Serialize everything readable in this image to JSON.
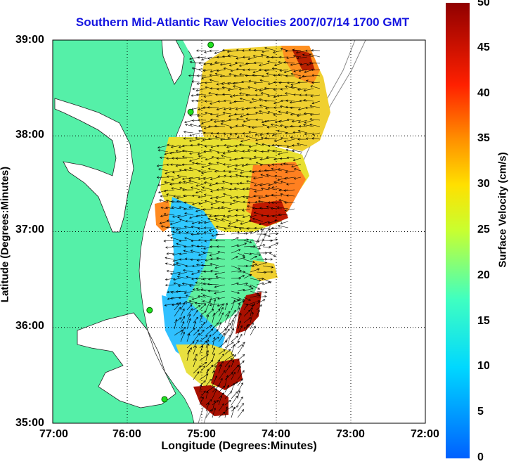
{
  "title": "Southern Mid-Atlantic Raw Velocities 2007/07/14 1700 GMT",
  "xlabel": "Longitude (Degrees:Minutes)",
  "ylabel": "Latitude (Degrees:Minutes)",
  "colorbar": {
    "label": "Surface Velocity (cm/s)",
    "min": 0,
    "max": 50,
    "ticks": [
      "0",
      "5",
      "10",
      "15",
      "20",
      "25",
      "30",
      "35",
      "40",
      "45",
      "50"
    ]
  },
  "x_ticks": [
    "77:00",
    "76:00",
    "75:00",
    "74:00",
    "73:00",
    "72:00"
  ],
  "y_ticks": [
    "39:00",
    "38:00",
    "37:00",
    "36:00",
    "35:00"
  ],
  "colors": {
    "land": "#55f0a8",
    "water": "#ffffff",
    "title": "#1414e0",
    "grid": "#000000"
  },
  "map_data": {
    "lon_range": [
      -77,
      -72
    ],
    "lat_range": [
      35,
      39
    ],
    "stations": [
      {
        "lon": -74.88,
        "lat": 38.95
      },
      {
        "lon": -75.15,
        "lat": 38.25
      },
      {
        "lon": -75.7,
        "lat": 36.18
      },
      {
        "lon": -75.5,
        "lat": 35.25
      }
    ]
  }
}
